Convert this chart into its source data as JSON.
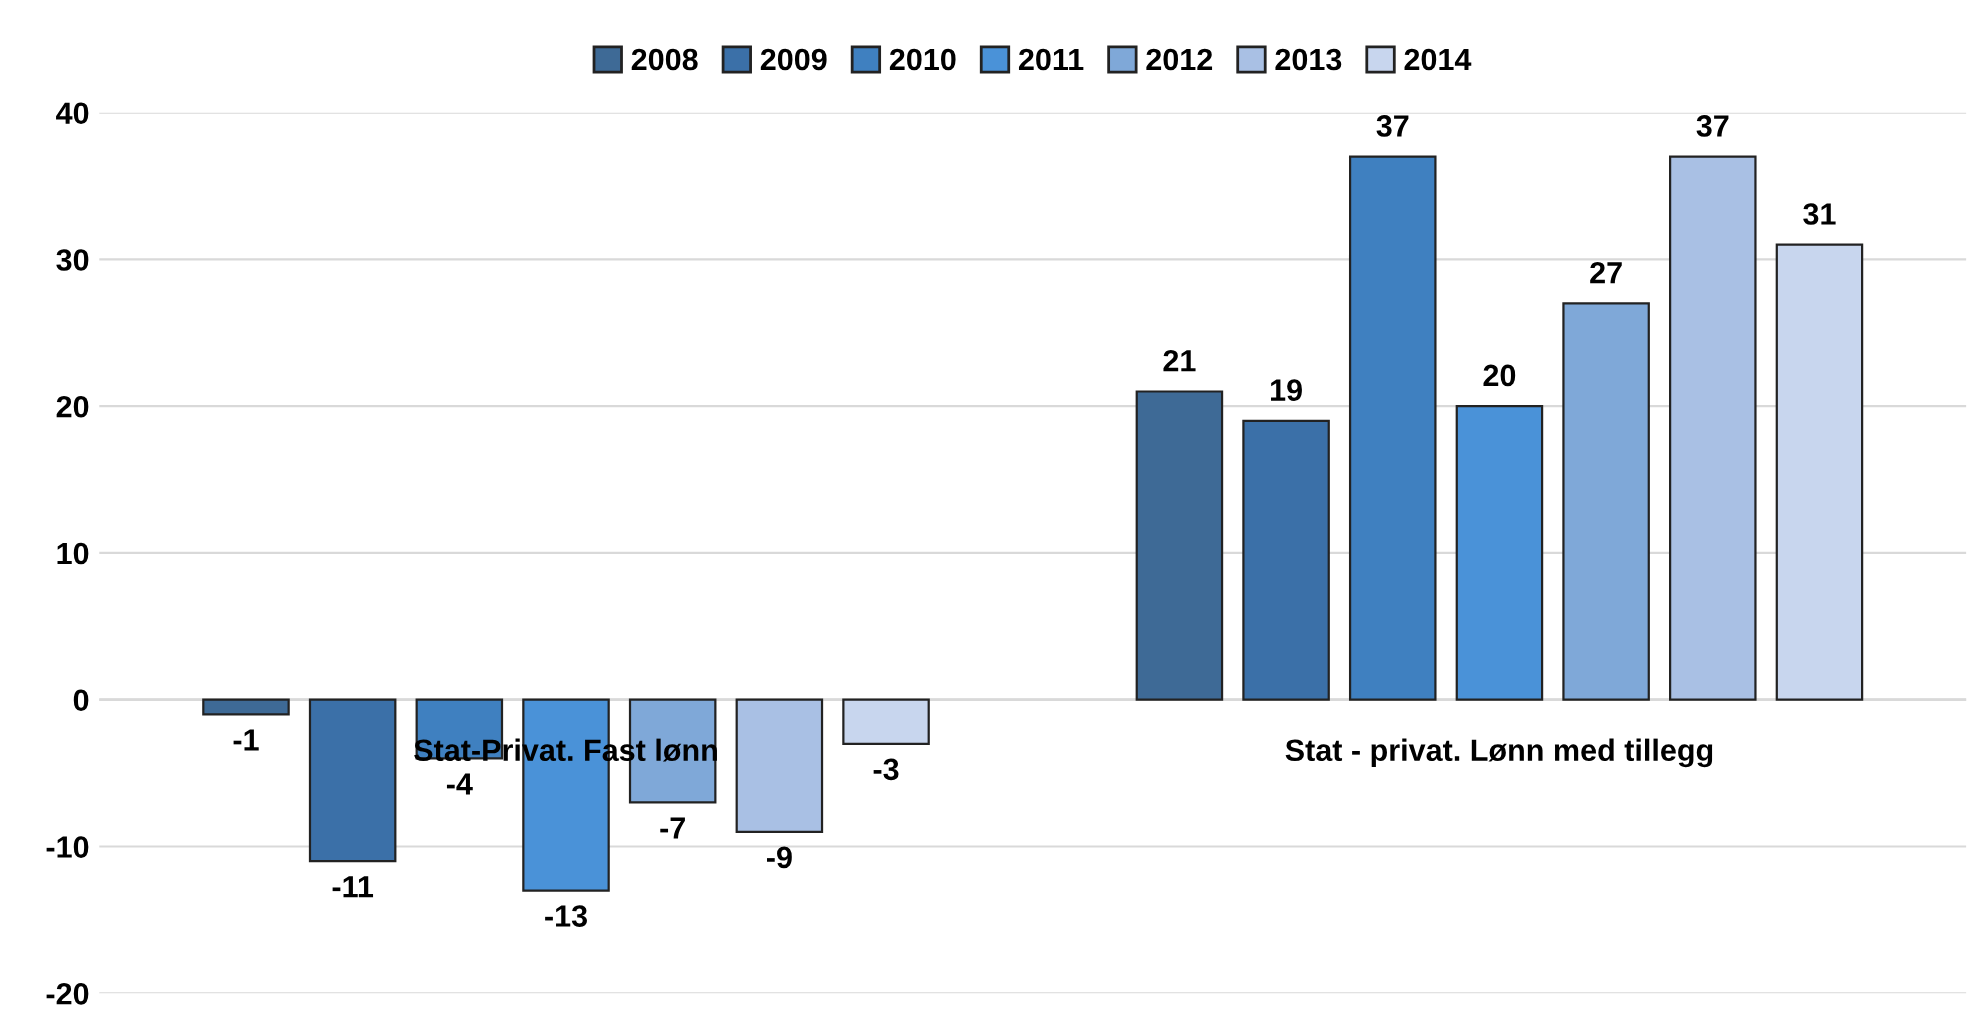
{
  "chart_data": {
    "type": "bar",
    "categories": [
      "Stat-Privat. Fast lønn",
      "Stat - privat. Lønn med tillegg"
    ],
    "series": [
      {
        "name": "2008",
        "color": "#3e6a96",
        "values": [
          -1,
          21
        ]
      },
      {
        "name": "2009",
        "color": "#3b70a8",
        "values": [
          -11,
          19
        ]
      },
      {
        "name": "2010",
        "color": "#3f80c0",
        "values": [
          -4,
          37
        ]
      },
      {
        "name": "2011",
        "color": "#4a92d8",
        "values": [
          -13,
          20
        ]
      },
      {
        "name": "2012",
        "color": "#7fa8d8",
        "values": [
          -7,
          27
        ]
      },
      {
        "name": "2013",
        "color": "#a9c0e4",
        "values": [
          -9,
          37
        ]
      },
      {
        "name": "2014",
        "color": "#c8d6ee",
        "values": [
          -3,
          31
        ]
      }
    ],
    "ylim": [
      -20,
      40
    ],
    "yticks": [
      -20,
      -10,
      0,
      10,
      20,
      30,
      40
    ],
    "grid": "y",
    "legend": "top",
    "data_labels": true
  }
}
